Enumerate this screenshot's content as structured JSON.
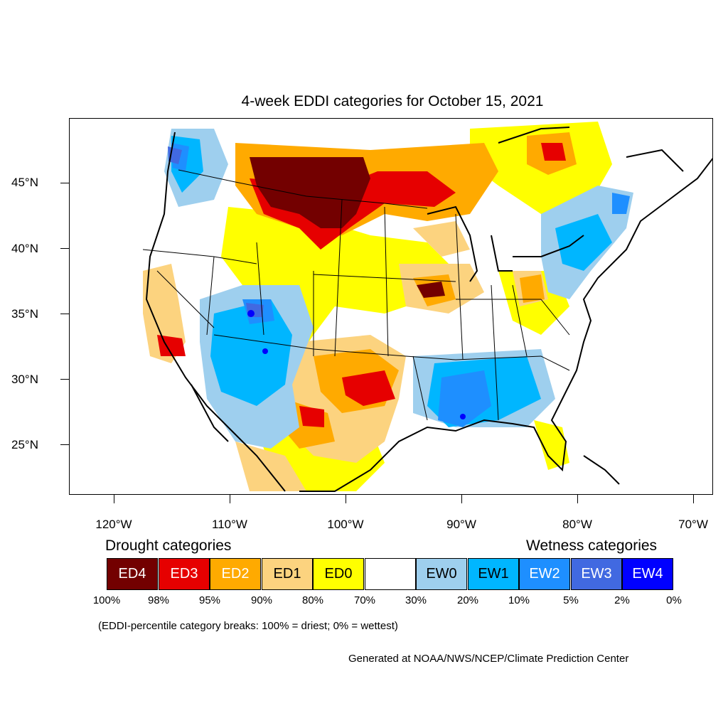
{
  "title": "4-week EDDI categories for October 15, 2021",
  "lat_labels": [
    "45°N",
    "40°N",
    "35°N",
    "30°N",
    "25°N"
  ],
  "lon_labels": [
    "120°W",
    "110°W",
    "100°W",
    "90°W",
    "80°W",
    "70°W"
  ],
  "legend": {
    "drought_heading": "Drought categories",
    "wetness_heading": "Wetness categories",
    "categories": [
      {
        "label": "ED4",
        "color": "#730000",
        "text_color": "#ffffff"
      },
      {
        "label": "ED3",
        "color": "#e60000",
        "text_color": "#ffffff"
      },
      {
        "label": "ED2",
        "color": "#ffaa00",
        "text_color": "#ffffff"
      },
      {
        "label": "ED1",
        "color": "#fcd37f",
        "text_color": "#000000"
      },
      {
        "label": "ED0",
        "color": "#ffff00",
        "text_color": "#000000"
      },
      {
        "label": "",
        "color": "#ffffff",
        "text_color": "#000000"
      },
      {
        "label": "EW0",
        "color": "#9ecfee",
        "text_color": "#000000"
      },
      {
        "label": "EW1",
        "color": "#00b6ff",
        "text_color": "#000000"
      },
      {
        "label": "EW2",
        "color": "#1e8fff",
        "text_color": "#ffffff"
      },
      {
        "label": "EW3",
        "color": "#4169e1",
        "text_color": "#ffffff"
      },
      {
        "label": "EW4",
        "color": "#0000ff",
        "text_color": "#ffffff"
      }
    ],
    "percentiles": [
      "100%",
      "98%",
      "95%",
      "90%",
      "80%",
      "70%",
      "30%",
      "20%",
      "10%",
      "5%",
      "2%",
      "0%"
    ]
  },
  "note": "(EDDI-percentile category breaks: 100% = driest; 0% = wettest)",
  "credit": "Generated at NOAA/NWS/NCEP/Climate Prediction Center"
}
